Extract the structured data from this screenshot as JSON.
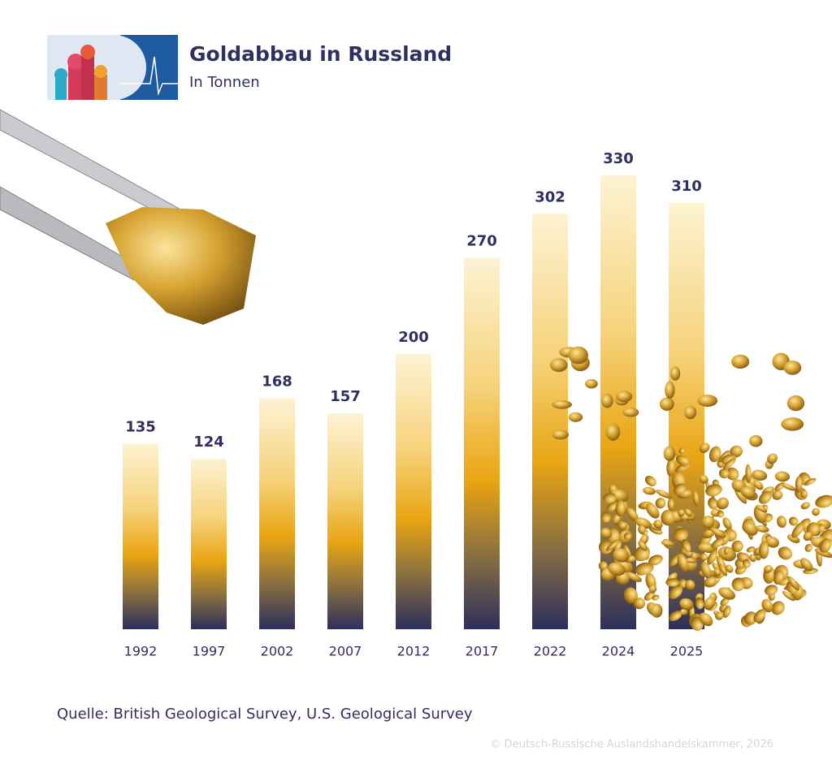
{
  "chart_data": {
    "type": "bar",
    "title": "Goldabbau in Russland",
    "subtitle": "In Tonnen",
    "categories": [
      "1992",
      "1997",
      "2002",
      "2007",
      "2012",
      "2017",
      "2022",
      "2024",
      "2025"
    ],
    "values": [
      135,
      124,
      168,
      157,
      200,
      270,
      302,
      330,
      310
    ],
    "source": "Quelle: British Geological Survey, U.S. Geological Survey",
    "copyright": "© Deutsch-Russische Auslandshandelskammer, 2026"
  }
}
